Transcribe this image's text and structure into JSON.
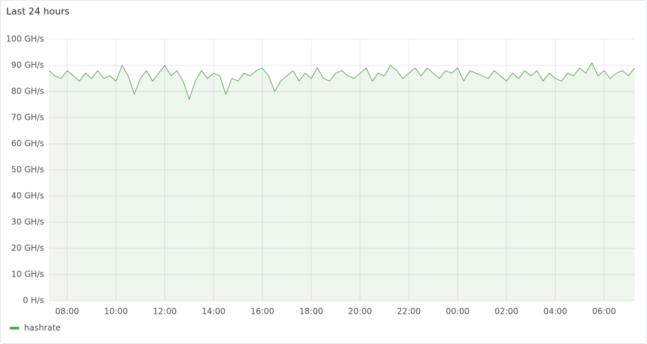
{
  "chart_data": {
    "type": "line",
    "title": "Last 24 hours",
    "x": [
      7.25,
      7.5,
      7.75,
      8,
      8.25,
      8.5,
      8.75,
      9,
      9.25,
      9.5,
      9.75,
      10,
      10.25,
      10.5,
      10.75,
      11,
      11.25,
      11.5,
      11.75,
      12,
      12.25,
      12.5,
      12.75,
      13,
      13.25,
      13.5,
      13.75,
      14,
      14.25,
      14.5,
      14.75,
      15,
      15.25,
      15.5,
      15.75,
      16,
      16.25,
      16.5,
      16.75,
      17,
      17.25,
      17.5,
      17.75,
      18,
      18.25,
      18.5,
      18.75,
      19,
      19.25,
      19.5,
      19.75,
      20,
      20.25,
      20.5,
      20.75,
      21,
      21.25,
      21.5,
      21.75,
      22,
      22.25,
      22.5,
      22.75,
      23,
      23.25,
      23.5,
      23.75,
      24,
      24.25,
      24.5,
      24.75,
      25,
      25.25,
      25.5,
      25.75,
      26,
      26.25,
      26.5,
      26.75,
      27,
      27.25,
      27.5,
      27.75,
      28,
      28.25,
      28.5,
      28.75,
      29,
      29.25,
      29.5,
      29.75,
      30,
      30.25,
      30.5,
      30.75,
      31,
      31.25
    ],
    "series": [
      {
        "name": "hashrate",
        "color": "#56a64b",
        "values": [
          88,
          86,
          85,
          88,
          86,
          84,
          87,
          85,
          88,
          85,
          86,
          84,
          90,
          86,
          79,
          85,
          88,
          84,
          87,
          90,
          86,
          88,
          84,
          77,
          84,
          88,
          85,
          87,
          86,
          79,
          85,
          84,
          87,
          86,
          88,
          89,
          86,
          80,
          84,
          86,
          88,
          84,
          87,
          85,
          89,
          85,
          84,
          87,
          88,
          86,
          85,
          87,
          89,
          84,
          87,
          86,
          90,
          88,
          85,
          87,
          89,
          86,
          89,
          87,
          85,
          88,
          87,
          89,
          84,
          88,
          87,
          86,
          85,
          88,
          86,
          84,
          87,
          85,
          88,
          86,
          88,
          84,
          87,
          85,
          84,
          87,
          86,
          89,
          87,
          91,
          86,
          88,
          85,
          87,
          88,
          86,
          89
        ]
      }
    ],
    "xlim": [
      7.25,
      31.25
    ],
    "xticks": [
      {
        "value": 8,
        "label": "08:00"
      },
      {
        "value": 10,
        "label": "10:00"
      },
      {
        "value": 12,
        "label": "12:00"
      },
      {
        "value": 14,
        "label": "14:00"
      },
      {
        "value": 16,
        "label": "16:00"
      },
      {
        "value": 18,
        "label": "18:00"
      },
      {
        "value": 20,
        "label": "20:00"
      },
      {
        "value": 22,
        "label": "22:00"
      },
      {
        "value": 24,
        "label": "00:00"
      },
      {
        "value": 26,
        "label": "02:00"
      },
      {
        "value": 28,
        "label": "04:00"
      },
      {
        "value": 30,
        "label": "06:00"
      }
    ],
    "ylim": [
      0,
      100
    ],
    "yticks": [
      {
        "value": 0,
        "label": "0 H/s"
      },
      {
        "value": 10,
        "label": "10 GH/s"
      },
      {
        "value": 20,
        "label": "20 GH/s"
      },
      {
        "value": 30,
        "label": "30 GH/s"
      },
      {
        "value": 40,
        "label": "40 GH/s"
      },
      {
        "value": 50,
        "label": "50 GH/s"
      },
      {
        "value": 60,
        "label": "60 GH/s"
      },
      {
        "value": 70,
        "label": "70 GH/s"
      },
      {
        "value": 80,
        "label": "80 GH/s"
      },
      {
        "value": 90,
        "label": "90 GH/s"
      },
      {
        "value": 100,
        "label": "100 GH/s"
      }
    ],
    "grid": true,
    "legend": "bottom-left"
  }
}
